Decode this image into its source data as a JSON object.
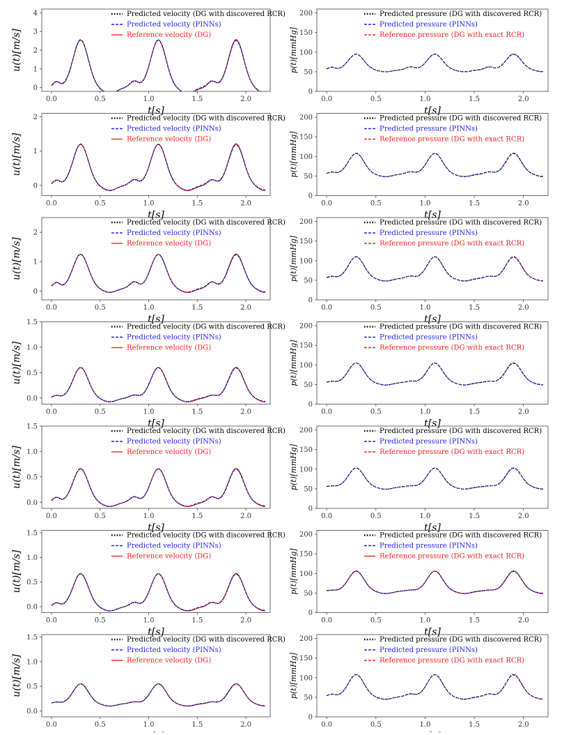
{
  "chart_data": [
    {
      "type": "line",
      "id": "v1",
      "panel": "velocity",
      "ylabel": "u(t)[m/s]",
      "xlabel": "t[s]",
      "xlim": [
        -0.1,
        2.25
      ],
      "ylim": [
        -0.2,
        4.2
      ],
      "yticks": [
        0,
        1,
        2,
        3,
        4
      ],
      "ytick_labels": [
        "0",
        "1",
        "2",
        "3",
        "4"
      ],
      "xticks": [
        0,
        0.5,
        1,
        1.5,
        2
      ],
      "xtick_labels": [
        "0.0",
        "0.5",
        "1.0",
        "1.5",
        "2.0"
      ],
      "shape": {
        "base": 0.0,
        "peak": 2.55,
        "bump": 0.32
      },
      "legend": [
        "Predicted velocity (DG with discovered RCR)",
        "Predicted velocity (PINNs)",
        "Reference velocity (DG)"
      ],
      "series": [
        {
          "name": "Predicted velocity (DG with discovered RCR)",
          "color": "#000000",
          "style": "dotted"
        },
        {
          "name": "Predicted velocity (PINNs)",
          "color": "#1f1fff",
          "style": "dashed"
        },
        {
          "name": "Reference velocity (DG)",
          "color": "#ff1f1f",
          "style": "solid"
        }
      ]
    },
    {
      "type": "line",
      "id": "p1",
      "panel": "pressure",
      "ylabel": "p(t)[mmHg]",
      "xlabel": "t[s]",
      "xlim": [
        -0.1,
        2.25
      ],
      "ylim": [
        0,
        210
      ],
      "yticks": [
        0,
        50,
        100,
        150,
        200
      ],
      "ytick_labels": [
        "0",
        "50",
        "100",
        "150",
        "200"
      ],
      "xticks": [
        0,
        0.5,
        1,
        1.5,
        2
      ],
      "xtick_labels": [
        "0.0",
        "0.5",
        "1.0",
        "1.5",
        "2.0"
      ],
      "shape": {
        "base": 55,
        "peak": 95,
        "bump": 62
      },
      "legend": [
        "Predicted pressure (DG with discovered RCR)",
        "Predicted pressure (PINNs)",
        "Reference pressure (DG with exact RCR)"
      ],
      "series": [
        {
          "name": "Predicted pressure (DG with discovered RCR)",
          "color": "#000000",
          "style": "dotted"
        },
        {
          "name": "Predicted pressure (PINNs)",
          "color": "#1f1fff",
          "style": "dashed"
        },
        {
          "name": "Reference pressure (DG with exact RCR)",
          "color": "#ff1f1f",
          "style": "dashed"
        }
      ]
    },
    {
      "type": "line",
      "id": "v2",
      "panel": "velocity",
      "ylabel": "u(t)[m/s]",
      "xlabel": "t[s]",
      "xlim": [
        -0.1,
        2.25
      ],
      "ylim": [
        -0.3,
        2.1
      ],
      "yticks": [
        0,
        1,
        2
      ],
      "ytick_labels": [
        "0",
        "1",
        "2"
      ],
      "xticks": [
        0,
        0.5,
        1,
        1.5,
        2
      ],
      "xtick_labels": [
        "0.0",
        "0.5",
        "1.0",
        "1.5",
        "2.0"
      ],
      "shape": {
        "base": 0.0,
        "peak": 1.2,
        "bump": 0.15
      },
      "legend": [
        "Predicted velocity (DG with discovered RCR)",
        "Predicted velocity (PINNs)",
        "Reference velocity (DG)"
      ],
      "series": [
        {
          "name": "Predicted velocity (DG with discovered RCR)",
          "color": "#000000",
          "style": "dotted"
        },
        {
          "name": "Predicted velocity (PINNs)",
          "color": "#1f1fff",
          "style": "dashed"
        },
        {
          "name": "Reference velocity (DG)",
          "color": "#ff1f1f",
          "style": "solid"
        }
      ]
    },
    {
      "type": "line",
      "id": "p2",
      "panel": "pressure",
      "ylabel": "p(t)[mmHg]",
      "xlabel": "t[s]",
      "xlim": [
        -0.1,
        2.25
      ],
      "ylim": [
        0,
        210
      ],
      "yticks": [
        0,
        50,
        100,
        150,
        200
      ],
      "ytick_labels": [
        "0",
        "50",
        "100",
        "150",
        "200"
      ],
      "xticks": [
        0,
        0.5,
        1,
        1.5,
        2
      ],
      "xtick_labels": [
        "0.0",
        "0.5",
        "1.0",
        "1.5",
        "2.0"
      ],
      "shape": {
        "base": 55,
        "peak": 108,
        "bump": 60
      },
      "legend": [
        "Predicted pressure (DG with discovered RCR)",
        "Predicted pressure (PINNs)",
        "Reference pressure (DG with exact RCR)"
      ],
      "series": [
        {
          "name": "Predicted pressure (DG with discovered RCR)",
          "color": "#000000",
          "style": "dotted"
        },
        {
          "name": "Predicted pressure (PINNs)",
          "color": "#1f1fff",
          "style": "dashed"
        },
        {
          "name": "Reference pressure (DG with exact RCR)",
          "color": "#ff1f1f",
          "style": "dashed"
        }
      ]
    },
    {
      "type": "line",
      "id": "v3",
      "panel": "velocity",
      "ylabel": "u(t)[m/s]",
      "xlabel": "t[s]",
      "xlim": [
        -0.1,
        2.25
      ],
      "ylim": [
        -0.3,
        2.5
      ],
      "yticks": [
        0,
        1,
        2
      ],
      "ytick_labels": [
        "0",
        "1",
        "2"
      ],
      "xticks": [
        0,
        0.5,
        1,
        1.5,
        2
      ],
      "xtick_labels": [
        "0.0",
        "0.5",
        "1.0",
        "1.5",
        "2.0"
      ],
      "shape": {
        "base": 0.1,
        "peak": 1.25,
        "bump": 0.3
      },
      "legend": [
        "Predicted velocity (DG with discovered RCR)",
        "Predicted velocity (PINNs)",
        "Reference velocity (DG)"
      ],
      "series": [
        {
          "name": "Predicted velocity (DG with discovered RCR)",
          "color": "#000000",
          "style": "dotted"
        },
        {
          "name": "Predicted velocity (PINNs)",
          "color": "#1f1fff",
          "style": "dashed"
        },
        {
          "name": "Reference velocity (DG)",
          "color": "#ff1f1f",
          "style": "solid"
        }
      ]
    },
    {
      "type": "line",
      "id": "p3",
      "panel": "pressure",
      "ylabel": "p(t)[mmHg]",
      "xlabel": "t[s]",
      "xlim": [
        -0.1,
        2.25
      ],
      "ylim": [
        0,
        210
      ],
      "yticks": [
        0,
        50,
        100,
        150,
        200
      ],
      "ytick_labels": [
        "0",
        "50",
        "100",
        "150",
        "200"
      ],
      "xticks": [
        0,
        0.5,
        1,
        1.5,
        2
      ],
      "xtick_labels": [
        "0.0",
        "0.5",
        "1.0",
        "1.5",
        "2.0"
      ],
      "shape": {
        "base": 55,
        "peak": 110,
        "bump": 60
      },
      "legend": [
        "Predicted pressure (DG with discovered RCR)",
        "Predicted pressure (PINNs)",
        "Reference pressure (DG with exact RCR)"
      ],
      "series": [
        {
          "name": "Predicted pressure (DG with discovered RCR)",
          "color": "#000000",
          "style": "dotted"
        },
        {
          "name": "Predicted pressure (PINNs)",
          "color": "#1f1fff",
          "style": "dashed"
        },
        {
          "name": "Reference pressure (DG with exact RCR)",
          "color": "#ff1f1f",
          "style": "dashed"
        }
      ]
    },
    {
      "type": "line",
      "id": "v4",
      "panel": "velocity",
      "ylabel": "u(t)[m/s]",
      "xlabel": "t[s]",
      "xlim": [
        -0.1,
        2.25
      ],
      "ylim": [
        -0.12,
        1.5
      ],
      "yticks": [
        0,
        0.5,
        1.0,
        1.5
      ],
      "ytick_labels": [
        "0.0",
        "0.5",
        "1.0",
        "1.5"
      ],
      "xticks": [
        0,
        0.5,
        1,
        1.5,
        2
      ],
      "xtick_labels": [
        "0.0",
        "0.5",
        "1.0",
        "1.5",
        "2.0"
      ],
      "shape": {
        "base": 0.0,
        "peak": 0.6,
        "bump": 0.05
      },
      "legend": [
        "Predicted velocity (DG with discovered RCR)",
        "Predicted velocity (PINNs)",
        "Reference velocity (DG)"
      ],
      "series": [
        {
          "name": "Predicted velocity (DG with discovered RCR)",
          "color": "#000000",
          "style": "dotted"
        },
        {
          "name": "Predicted velocity (PINNs)",
          "color": "#1f1fff",
          "style": "dashed"
        },
        {
          "name": "Reference velocity (DG)",
          "color": "#ff1f1f",
          "style": "solid"
        }
      ]
    },
    {
      "type": "line",
      "id": "p4",
      "panel": "pressure",
      "ylabel": "p(t)[mmHg]",
      "xlabel": "t[s]",
      "xlim": [
        -0.1,
        2.25
      ],
      "ylim": [
        0,
        210
      ],
      "yticks": [
        0,
        50,
        100,
        150,
        200
      ],
      "ytick_labels": [
        "0",
        "50",
        "100",
        "150",
        "200"
      ],
      "xticks": [
        0,
        0.5,
        1,
        1.5,
        2
      ],
      "xtick_labels": [
        "0.0",
        "0.5",
        "1.0",
        "1.5",
        "2.0"
      ],
      "shape": {
        "base": 55,
        "peak": 105,
        "bump": 58
      },
      "legend": [
        "Predicted pressure (DG with discovered RCR)",
        "Predicted pressure (PINNs)",
        "Reference pressure (DG with exact RCR)"
      ],
      "series": [
        {
          "name": "Predicted pressure (DG with discovered RCR)",
          "color": "#000000",
          "style": "dotted"
        },
        {
          "name": "Predicted pressure (PINNs)",
          "color": "#1f1fff",
          "style": "dashed"
        },
        {
          "name": "Reference pressure (DG with exact RCR)",
          "color": "#ff1f1f",
          "style": "dashed"
        }
      ]
    },
    {
      "type": "line",
      "id": "v5",
      "panel": "velocity",
      "ylabel": "u(t)[m/s]",
      "xlabel": "t[s]",
      "xlim": [
        -0.1,
        2.25
      ],
      "ylim": [
        -0.12,
        1.5
      ],
      "yticks": [
        0,
        0.5,
        1.0,
        1.5
      ],
      "ytick_labels": [
        "0.0",
        "0.5",
        "1.0",
        "1.5"
      ],
      "xticks": [
        0,
        0.5,
        1,
        1.5,
        2
      ],
      "xtick_labels": [
        "0.0",
        "0.5",
        "1.0",
        "1.5",
        "2.0"
      ],
      "shape": {
        "base": 0.0,
        "peak": 0.66,
        "bump": 0.1
      },
      "legend": [
        "Predicted velocity (DG with discovered RCR)",
        "Predicted velocity (PINNs)",
        "Reference velocity (DG)"
      ],
      "series": [
        {
          "name": "Predicted velocity (DG with discovered RCR)",
          "color": "#000000",
          "style": "dotted"
        },
        {
          "name": "Predicted velocity (PINNs)",
          "color": "#1f1fff",
          "style": "dashed"
        },
        {
          "name": "Reference velocity (DG)",
          "color": "#ff1f1f",
          "style": "solid"
        }
      ]
    },
    {
      "type": "line",
      "id": "p5",
      "panel": "pressure",
      "ylabel": "p(t)[mmHg]",
      "xlabel": "t[s]",
      "xlim": [
        -0.1,
        2.25
      ],
      "ylim": [
        0,
        210
      ],
      "yticks": [
        0,
        50,
        100,
        150,
        200
      ],
      "ytick_labels": [
        "0",
        "50",
        "100",
        "150",
        "200"
      ],
      "xticks": [
        0,
        0.5,
        1,
        1.5,
        2
      ],
      "xtick_labels": [
        "0.0",
        "0.5",
        "1.0",
        "1.5",
        "2.0"
      ],
      "shape": {
        "base": 55,
        "peak": 103,
        "bump": 57
      },
      "legend": [
        "Predicted pressure (DG with discovered RCR)",
        "Predicted pressure (PINNs)",
        "Reference pressure (DG with exact RCR)"
      ],
      "series": [
        {
          "name": "Predicted pressure (DG with discovered RCR)",
          "color": "#000000",
          "style": "dotted"
        },
        {
          "name": "Predicted pressure (PINNs)",
          "color": "#1f1fff",
          "style": "dashed"
        },
        {
          "name": "Reference pressure (DG with exact RCR)",
          "color": "#ff1f1f",
          "style": "dashed"
        }
      ]
    },
    {
      "type": "line",
      "id": "v6",
      "panel": "velocity",
      "ylabel": "u(t)[m/s]",
      "xlabel": "t[s]",
      "xlim": [
        -0.1,
        2.25
      ],
      "ylim": [
        -0.12,
        1.55
      ],
      "yticks": [
        0,
        0.5,
        1.0,
        1.5
      ],
      "ytick_labels": [
        "0.0",
        "0.5",
        "1.0",
        "1.5"
      ],
      "xticks": [
        0,
        0.5,
        1,
        1.5,
        2
      ],
      "xtick_labels": [
        "0.0",
        "0.5",
        "1.0",
        "1.5",
        "2.0"
      ],
      "shape": {
        "base": 0.0,
        "peak": 0.67,
        "bump": 0.08
      },
      "legend": [
        "Predicted velocity (DG with discovered RCR)",
        "Predicted velocity (PINNs)",
        "Reference velocity (DG)"
      ],
      "series": [
        {
          "name": "Predicted velocity (DG with discovered RCR)",
          "color": "#000000",
          "style": "dotted"
        },
        {
          "name": "Predicted velocity (PINNs)",
          "color": "#1f1fff",
          "style": "dashed"
        },
        {
          "name": "Reference velocity (DG)",
          "color": "#ff1f1f",
          "style": "solid"
        }
      ]
    },
    {
      "type": "line",
      "id": "p6",
      "panel": "pressure",
      "ylabel": "p(t)[mmHg]",
      "xlabel": "t[s]",
      "xlim": [
        -0.1,
        2.25
      ],
      "ylim": [
        0,
        210
      ],
      "yticks": [
        0,
        50,
        100,
        150,
        200
      ],
      "ytick_labels": [
        "0",
        "50",
        "100",
        "150",
        "200"
      ],
      "xticks": [
        0,
        0.5,
        1,
        1.5,
        2
      ],
      "xtick_labels": [
        "0.0",
        "0.5",
        "1.0",
        "1.5",
        "2.0"
      ],
      "shape": {
        "base": 55,
        "peak": 106,
        "bump": 57
      },
      "legend": [
        "Predicted pressure (DG with discovered RCR)",
        "Predicted pressure (PINNs)",
        "Reference pressure (DG with exact RCR)"
      ],
      "series": [
        {
          "name": "Predicted pressure (DG with discovered RCR)",
          "color": "#000000",
          "style": "dotted"
        },
        {
          "name": "Predicted pressure (PINNs)",
          "color": "#1f1fff",
          "style": "dashed"
        },
        {
          "name": "Reference pressure (DG with exact RCR)",
          "color": "#ff1f1f",
          "style": "solid"
        }
      ]
    },
    {
      "type": "line",
      "id": "v7",
      "panel": "velocity",
      "ylabel": "u(t)[m/s]",
      "xlabel": "t[s]",
      "xlim": [
        -0.1,
        2.25
      ],
      "ylim": [
        -0.12,
        1.55
      ],
      "yticks": [
        0,
        0.5,
        1.0,
        1.5
      ],
      "ytick_labels": [
        "0.0",
        "0.5",
        "1.0",
        "1.5"
      ],
      "xticks": [
        0,
        0.5,
        1,
        1.5,
        2
      ],
      "xtick_labels": [
        "0.0",
        "0.5",
        "1.0",
        "1.5",
        "2.0"
      ],
      "shape": {
        "base": 0.15,
        "peak": 0.55,
        "bump": 0.18
      },
      "legend": [
        "Predicted velocity (DG with discovered RCR)",
        "Predicted velocity (PINNs)",
        "Reference velocity (DG)"
      ],
      "series": [
        {
          "name": "Predicted velocity (DG with discovered RCR)",
          "color": "#000000",
          "style": "dotted"
        },
        {
          "name": "Predicted velocity (PINNs)",
          "color": "#1f1fff",
          "style": "dashed"
        },
        {
          "name": "Reference velocity (DG)",
          "color": "#ff1f1f",
          "style": "solid"
        }
      ]
    },
    {
      "type": "line",
      "id": "p7",
      "panel": "pressure",
      "ylabel": "p(t)[mmHg]",
      "xlabel": "t[s]",
      "xlim": [
        -0.1,
        2.25
      ],
      "ylim": [
        0,
        210
      ],
      "yticks": [
        0,
        50,
        100,
        150,
        200
      ],
      "ytick_labels": [
        "0",
        "50",
        "100",
        "150",
        "200"
      ],
      "xticks": [
        0,
        0.5,
        1,
        1.5,
        2
      ],
      "xtick_labels": [
        "0.0",
        "0.5",
        "1.0",
        "1.5",
        "2.0"
      ],
      "shape": {
        "base": 52,
        "peak": 108,
        "bump": 58
      },
      "legend": [
        "Predicted pressure (DG with discovered RCR)",
        "Predicted pressure (PINNs)",
        "Reference pressure (DG with exact RCR)"
      ],
      "series": [
        {
          "name": "Predicted pressure (DG with discovered RCR)",
          "color": "#000000",
          "style": "dotted"
        },
        {
          "name": "Predicted pressure (PINNs)",
          "color": "#1f1fff",
          "style": "dashed"
        },
        {
          "name": "Reference pressure (DG with exact RCR)",
          "color": "#ff1f1f",
          "style": "dashed"
        }
      ]
    }
  ]
}
